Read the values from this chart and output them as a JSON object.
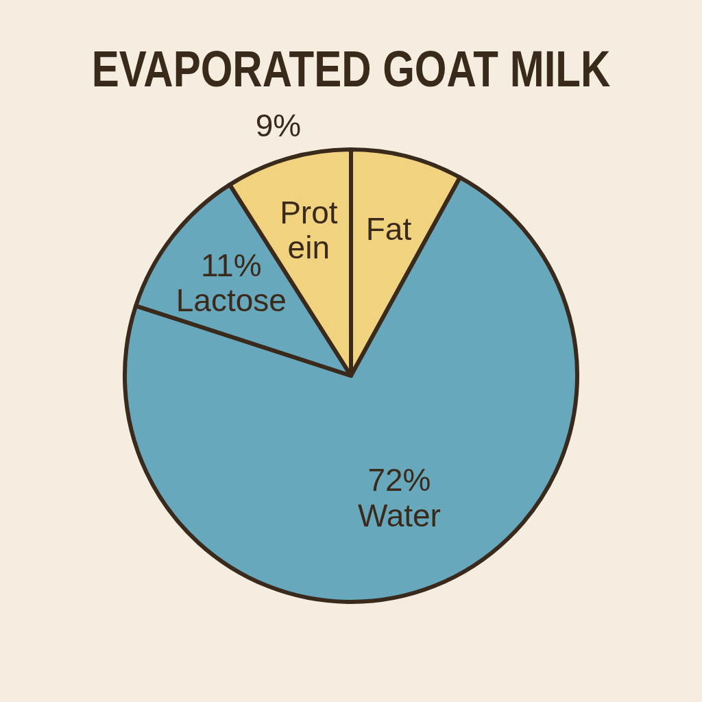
{
  "chart_data": {
    "type": "pie",
    "title": "EVAPORATED GOAT MILK",
    "categories": [
      "Fat",
      "Water",
      "Lactose",
      "Prot\nein"
    ],
    "values": [
      8,
      72,
      11,
      9
    ],
    "colors": [
      "#f1d27e",
      "#68a8bd",
      "#68a8bd",
      "#f1d27e"
    ],
    "value_labels": [
      null,
      "72%",
      "11%",
      "9%"
    ]
  }
}
